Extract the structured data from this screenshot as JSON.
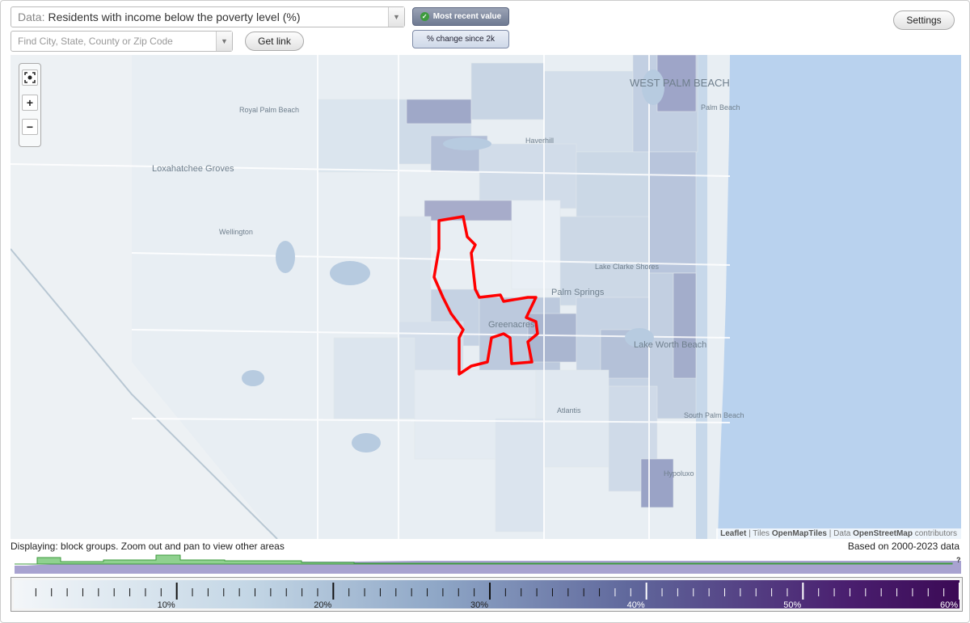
{
  "controls": {
    "data_prefix": "Data:",
    "data_value": "Residents with income below the poverty level (%)",
    "find_placeholder": "Find City, State, County or Zip Code",
    "get_link": "Get link",
    "mode_recent": "Most recent value",
    "mode_change": "% change since 2k",
    "settings": "Settings"
  },
  "map": {
    "place_labels": [
      "WEST PALM BEACH",
      "Palm Beach",
      "Royal Palm Beach",
      "Haverhill",
      "Loxahatchee Groves",
      "Wellington",
      "Lake Clarke Shores",
      "Palm Springs",
      "Greenacres",
      "Lake Worth Beach",
      "Atlantis",
      "South Palm Beach",
      "Hypoluxo"
    ],
    "zoom": {
      "fit": "fit-to-area",
      "in": "+",
      "out": "−"
    },
    "attribution": {
      "leaflet": "Leaflet",
      "sep1": " | Tiles ",
      "tiles": "OpenMapTiles",
      "sep2": " | Data ",
      "data": "OpenStreetMap",
      "tail": " contributors"
    },
    "colors": {
      "water": "#b9d2ee",
      "land": "#e8eef3",
      "highlight": "#ff0000"
    }
  },
  "status": {
    "displaying": "Displaying: block groups. Zoom out and pan to view other areas",
    "based_on": "Based on 2000-2023 data",
    "unknown_marker": "?"
  },
  "legend": {
    "ticks": [
      "10%",
      "20%",
      "30%",
      "40%",
      "50%",
      "60%"
    ],
    "tick_values": [
      10,
      20,
      30,
      40,
      50,
      60
    ]
  }
}
